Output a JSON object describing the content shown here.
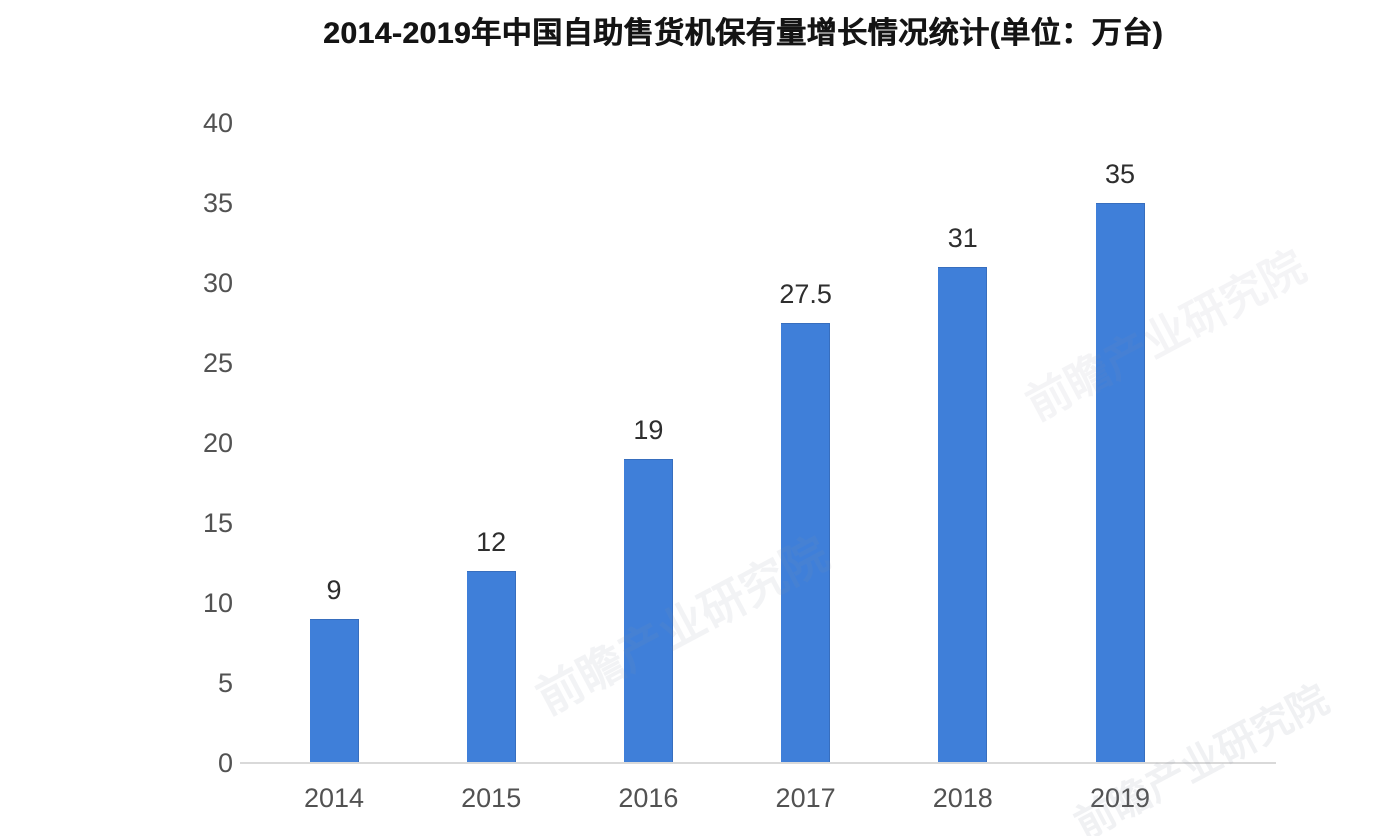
{
  "chart_data": {
    "type": "bar",
    "title": "2014-2019年中国自助售货机保有量增长情况统计(单位：万台)",
    "categories": [
      "2014",
      "2015",
      "2016",
      "2017",
      "2018",
      "2019"
    ],
    "values": [
      9,
      12,
      19,
      27.5,
      31,
      35
    ],
    "value_labels": [
      "9",
      "12",
      "19",
      "27.5",
      "31",
      "35"
    ],
    "xlabel": "",
    "ylabel": "",
    "ylim": [
      0,
      40
    ],
    "yticks": [
      0,
      5,
      10,
      15,
      20,
      25,
      30,
      35,
      40
    ],
    "grid": false,
    "legend_position": "none",
    "bar_color": "#3F7FD9",
    "axis_line_color": "#D9D9D9",
    "tick_label_color": "#525252",
    "value_label_color": "#2E2E2E",
    "title_color": "#141414",
    "background_color": "#FFFFFF"
  },
  "watermark": {
    "text": "前瞻产业研究院",
    "color": "#8A93A6"
  }
}
